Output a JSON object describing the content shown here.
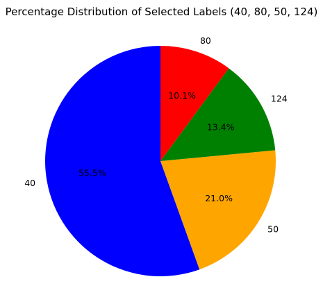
{
  "chart_data": {
    "type": "pie",
    "title": "Percentage Distribution of Selected Labels (40, 80, 50, 124)",
    "start_angle_deg": 90,
    "direction": "counterclockwise",
    "legend": "none",
    "slices": [
      {
        "label": "40",
        "percent": 55.5,
        "percent_label": "55.5%",
        "color": "#0000ff"
      },
      {
        "label": "50",
        "percent": 21.0,
        "percent_label": "21.0%",
        "color": "#ffa500"
      },
      {
        "label": "124",
        "percent": 13.4,
        "percent_label": "13.4%",
        "color": "#008000"
      },
      {
        "label": "80",
        "percent": 10.1,
        "percent_label": "10.1%",
        "color": "#ff0000"
      }
    ]
  }
}
